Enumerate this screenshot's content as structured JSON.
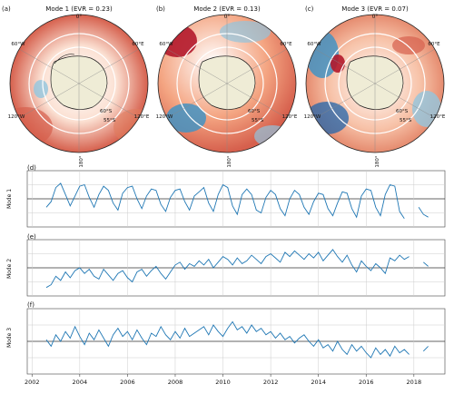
{
  "chart_data": [
    {
      "type": "map",
      "panel": "(a)",
      "title": "Mode 1 (EVR = 0.23)",
      "lon_labels": [
        "0°",
        "60°E",
        "120°E",
        "180°",
        "120°W",
        "60°W"
      ],
      "lat_labels": [
        "60°S",
        "55°S"
      ],
      "colormap": "diverging red-blue",
      "dominant_sign": "positive (red) in outer ring, mostly neutral near continent"
    },
    {
      "type": "map",
      "panel": "(b)",
      "title": "Mode 2 (EVR = 0.13)",
      "lon_labels": [
        "0°",
        "60°E",
        "120°E",
        "180°",
        "120°W",
        "60°W"
      ],
      "lat_labels": [
        "60°S",
        "55°S"
      ],
      "colormap": "diverging red-blue",
      "dominant_sign": "red in Weddell/Atlantic sector, blue in Pacific sector"
    },
    {
      "type": "map",
      "panel": "(c)",
      "title": "Mode 3 (EVR = 0.07)",
      "lon_labels": [
        "0°",
        "60°E",
        "120°E",
        "180°",
        "120°W",
        "60°W"
      ],
      "lat_labels": [
        "60°S",
        "55°S"
      ],
      "colormap": "diverging red-blue",
      "dominant_sign": "mixed, strong red near Atlantic, blue patches west"
    },
    {
      "type": "line",
      "panel": "(d)",
      "ylabel": "Mode 1",
      "x": [
        2002.6,
        2002.8,
        2003.0,
        2003.2,
        2003.4,
        2003.6,
        2003.8,
        2004.0,
        2004.2,
        2004.4,
        2004.6,
        2004.8,
        2005.0,
        2005.2,
        2005.4,
        2005.6,
        2005.8,
        2006.0,
        2006.2,
        2006.4,
        2006.6,
        2006.8,
        2007.0,
        2007.2,
        2007.4,
        2007.6,
        2007.8,
        2008.0,
        2008.2,
        2008.4,
        2008.6,
        2008.8,
        2009.0,
        2009.2,
        2009.4,
        2009.6,
        2009.8,
        2010.0,
        2010.2,
        2010.4,
        2010.6,
        2010.8,
        2011.0,
        2011.2,
        2011.4,
        2011.6,
        2011.8,
        2012.0,
        2012.2,
        2012.4,
        2012.6,
        2012.8,
        2013.0,
        2013.2,
        2013.4,
        2013.6,
        2013.8,
        2014.0,
        2014.2,
        2014.4,
        2014.6,
        2014.8,
        2015.0,
        2015.2,
        2015.4,
        2015.6,
        2015.8,
        2016.0,
        2016.2,
        2016.4,
        2016.6,
        2016.8,
        2017.0,
        2017.2,
        2017.4,
        2017.6,
        2017.8,
        2018.0,
        2018.2,
        2018.4,
        2018.6
      ],
      "y": [
        -0.6,
        -0.2,
        0.8,
        1.1,
        0.3,
        -0.5,
        0.2,
        0.9,
        1.0,
        0.1,
        -0.6,
        0.3,
        0.9,
        0.6,
        -0.3,
        -0.8,
        0.4,
        0.8,
        0.9,
        0.0,
        -0.7,
        0.2,
        0.7,
        0.6,
        -0.4,
        -0.9,
        0.1,
        0.6,
        0.7,
        -0.2,
        -0.8,
        0.2,
        0.5,
        0.8,
        -0.3,
        -0.9,
        0.3,
        1.0,
        0.8,
        -0.5,
        -1.1,
        0.3,
        0.7,
        0.3,
        -0.8,
        -1.0,
        0.1,
        0.6,
        0.3,
        -0.7,
        -1.2,
        0.0,
        0.6,
        0.3,
        -0.6,
        -1.1,
        -0.2,
        0.4,
        0.3,
        -0.7,
        -1.2,
        -0.3,
        0.5,
        0.4,
        -0.7,
        -1.3,
        0.2,
        0.7,
        0.6,
        -0.6,
        -1.2,
        0.3,
        1.0,
        0.9,
        -0.9,
        -1.4,
        null,
        null,
        -0.6,
        -1.1,
        -1.3
      ],
      "ylim": [
        -2,
        2
      ]
    },
    {
      "type": "line",
      "panel": "(e)",
      "ylabel": "Mode 2",
      "x": [
        2002.6,
        2002.8,
        2003.0,
        2003.2,
        2003.4,
        2003.6,
        2003.8,
        2004.0,
        2004.2,
        2004.4,
        2004.6,
        2004.8,
        2005.0,
        2005.2,
        2005.4,
        2005.6,
        2005.8,
        2006.0,
        2006.2,
        2006.4,
        2006.6,
        2006.8,
        2007.0,
        2007.2,
        2007.4,
        2007.6,
        2007.8,
        2008.0,
        2008.2,
        2008.4,
        2008.6,
        2008.8,
        2009.0,
        2009.2,
        2009.4,
        2009.6,
        2009.8,
        2010.0,
        2010.2,
        2010.4,
        2010.6,
        2010.8,
        2011.0,
        2011.2,
        2011.4,
        2011.6,
        2011.8,
        2012.0,
        2012.2,
        2012.4,
        2012.6,
        2012.8,
        2013.0,
        2013.2,
        2013.4,
        2013.6,
        2013.8,
        2014.0,
        2014.2,
        2014.4,
        2014.6,
        2014.8,
        2015.0,
        2015.2,
        2015.4,
        2015.6,
        2015.8,
        2016.0,
        2016.2,
        2016.4,
        2016.6,
        2016.8,
        2017.0,
        2017.2,
        2017.4,
        2017.6,
        2017.8,
        2018.0,
        2018.2,
        2018.4,
        2018.6
      ],
      "y": [
        -1.4,
        -1.2,
        -0.6,
        -0.9,
        -0.3,
        -0.7,
        -0.2,
        0.0,
        -0.4,
        -0.1,
        -0.6,
        -0.8,
        -0.1,
        -0.5,
        -0.9,
        -0.4,
        -0.2,
        -0.7,
        -1.0,
        -0.3,
        -0.1,
        -0.6,
        -0.2,
        0.1,
        -0.4,
        -0.8,
        -0.3,
        0.2,
        0.4,
        -0.1,
        0.3,
        0.1,
        0.5,
        0.2,
        0.6,
        0.0,
        0.4,
        0.8,
        0.6,
        0.2,
        0.7,
        0.3,
        0.5,
        0.9,
        0.6,
        0.3,
        0.8,
        1.0,
        0.7,
        0.4,
        1.1,
        0.8,
        1.2,
        0.9,
        0.6,
        1.0,
        0.7,
        1.1,
        0.5,
        0.9,
        1.3,
        0.8,
        0.4,
        0.9,
        0.2,
        -0.3,
        0.5,
        0.1,
        -0.2,
        0.3,
        0.0,
        -0.4,
        0.7,
        0.5,
        0.9,
        0.6,
        0.8,
        null,
        null,
        0.4,
        0.1
      ],
      "ylim": [
        -2,
        2
      ]
    },
    {
      "type": "line",
      "panel": "(f)",
      "ylabel": "Mode 3",
      "x": [
        2002.6,
        2002.8,
        2003.0,
        2003.2,
        2003.4,
        2003.6,
        2003.8,
        2004.0,
        2004.2,
        2004.4,
        2004.6,
        2004.8,
        2005.0,
        2005.2,
        2005.4,
        2005.6,
        2005.8,
        2006.0,
        2006.2,
        2006.4,
        2006.6,
        2006.8,
        2007.0,
        2007.2,
        2007.4,
        2007.6,
        2007.8,
        2008.0,
        2008.2,
        2008.4,
        2008.6,
        2008.8,
        2009.0,
        2009.2,
        2009.4,
        2009.6,
        2009.8,
        2010.0,
        2010.2,
        2010.4,
        2010.6,
        2010.8,
        2011.0,
        2011.2,
        2011.4,
        2011.6,
        2011.8,
        2012.0,
        2012.2,
        2012.4,
        2012.6,
        2012.8,
        2013.0,
        2013.2,
        2013.4,
        2013.6,
        2013.8,
        2014.0,
        2014.2,
        2014.4,
        2014.6,
        2014.8,
        2015.0,
        2015.2,
        2015.4,
        2015.6,
        2015.8,
        2016.0,
        2016.2,
        2016.4,
        2016.6,
        2016.8,
        2017.0,
        2017.2,
        2017.4,
        2017.6,
        2017.8,
        2018.0,
        2018.2,
        2018.4,
        2018.6
      ],
      "y": [
        0.1,
        -0.3,
        0.4,
        0.0,
        0.6,
        0.2,
        0.9,
        0.3,
        -0.2,
        0.5,
        0.1,
        0.7,
        0.2,
        -0.3,
        0.4,
        0.8,
        0.3,
        0.6,
        0.1,
        0.7,
        0.2,
        -0.2,
        0.5,
        0.3,
        0.9,
        0.4,
        0.1,
        0.6,
        0.2,
        0.8,
        0.3,
        0.5,
        0.7,
        0.9,
        0.4,
        1.0,
        0.6,
        0.3,
        0.8,
        1.2,
        0.7,
        0.9,
        0.5,
        1.0,
        0.6,
        0.8,
        0.4,
        0.6,
        0.2,
        0.5,
        0.1,
        0.3,
        -0.1,
        0.2,
        0.4,
        0.0,
        -0.3,
        0.1,
        -0.4,
        -0.2,
        -0.6,
        0.0,
        -0.5,
        -0.8,
        -0.2,
        -0.6,
        -0.3,
        -0.7,
        -1.0,
        -0.4,
        -0.8,
        -0.5,
        -0.9,
        -0.3,
        -0.7,
        -0.5,
        -0.8,
        null,
        null,
        -0.6,
        -0.3
      ],
      "ylim": [
        -2,
        2
      ]
    }
  ],
  "time_axis": {
    "ticks": [
      "2002",
      "2004",
      "2006",
      "2008",
      "2010",
      "2012",
      "2014",
      "2016",
      "2018"
    ],
    "range": [
      2001.8,
      2019.3
    ]
  },
  "colors": {
    "line": "#1f77b4",
    "land": "#efecd6",
    "red": "#d6604d",
    "blue": "#4393c3"
  }
}
